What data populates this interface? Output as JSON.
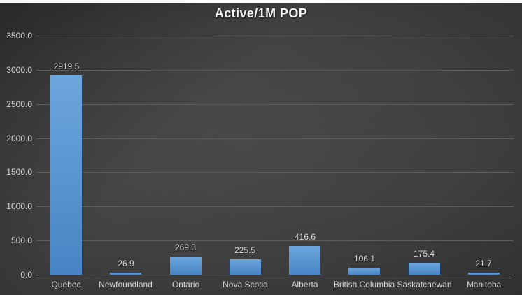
{
  "chart_data": {
    "type": "bar",
    "title": "Active/1M POP",
    "categories": [
      "Quebec",
      "Newfoundland",
      "Ontario",
      "Nova Scotia",
      "Alberta",
      "British Columbia",
      "Saskatchewan",
      "Manitoba"
    ],
    "values": [
      2919.5,
      26.9,
      269.3,
      225.5,
      416.6,
      106.1,
      175.4,
      21.7
    ],
    "data_labels": [
      "2919.5",
      "26.9",
      "269.3",
      "225.5",
      "416.6",
      "106.1",
      "175.4",
      "21.7"
    ],
    "y_ticks": [
      "0.0",
      "500.0",
      "1000.0",
      "1500.0",
      "2000.0",
      "2500.0",
      "3000.0",
      "3500.0"
    ],
    "ylim": [
      0,
      3500
    ],
    "xlabel": "",
    "ylabel": "",
    "grid": true,
    "legend": "none",
    "colors": {
      "bar_top": "#6da6dd",
      "bar_bottom": "#4884c4",
      "bar_solid": "#5b9bd5",
      "gridline": "#5d5d5d",
      "axis_line": "#a6a6a6",
      "tick_label": "#d9d9d9",
      "data_label": "#dcdcdc",
      "category_label": "#d9d9d9",
      "title": "#f2f2f2",
      "background_center": "#4a4a4a",
      "background_edge": "#232323",
      "top_strip": "#fbfbfb"
    }
  }
}
